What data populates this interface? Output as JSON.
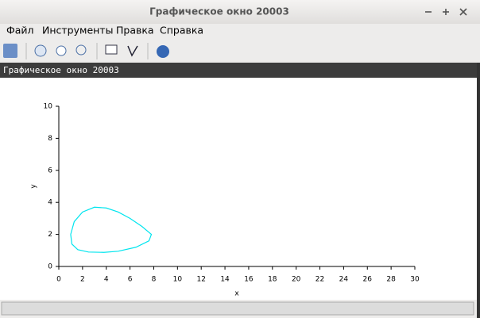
{
  "window": {
    "title": "Графическое окно 20003"
  },
  "menu": [
    "Файл",
    "Инструменты",
    "Правка",
    "Справка"
  ],
  "figure_title": "Графическое окно 20003",
  "chart_data": {
    "type": "line",
    "xlabel": "x",
    "ylabel": "y",
    "color": "#00e5ee",
    "x": [
      1.0,
      1.3,
      2.0,
      3.0,
      4.0,
      5.0,
      6.0,
      7.0,
      7.8,
      7.6,
      6.5,
      5.0,
      3.8,
      2.5,
      1.6,
      1.1,
      1.0
    ],
    "values": [
      2.0,
      2.8,
      3.4,
      3.7,
      3.65,
      3.4,
      3.0,
      2.5,
      2.0,
      1.6,
      1.2,
      0.95,
      0.88,
      0.9,
      1.05,
      1.4,
      2.0
    ],
    "xlim": [
      0,
      30
    ],
    "ylim": [
      0,
      10
    ],
    "xticks": [
      0,
      2,
      4,
      6,
      8,
      10,
      12,
      14,
      16,
      18,
      20,
      22,
      24,
      26,
      28,
      30
    ],
    "yticks": [
      0,
      2,
      4,
      6,
      8,
      10
    ]
  }
}
